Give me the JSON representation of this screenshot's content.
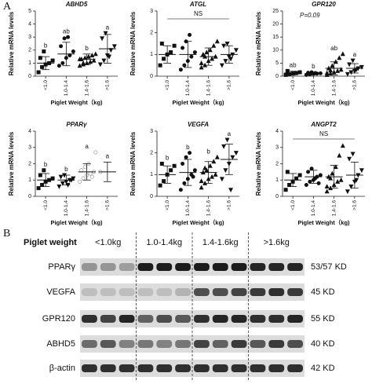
{
  "panel_labels": [
    "A",
    "B"
  ],
  "chart_data": [
    {
      "type": "scatter",
      "title": "ABHD5",
      "y_label": "Relative mRNA levels",
      "x_label": "Piglet Weight（kg)",
      "categories": [
        "<1.0",
        "1.0-1.4",
        "1.4-1.6",
        ">1.6"
      ],
      "markers": [
        "square",
        "circle",
        "triangle",
        "triangle-down"
      ],
      "ylim": [
        0,
        5
      ],
      "yticks": [
        0,
        1,
        2,
        3,
        4,
        5
      ],
      "points": [
        [
          0.3,
          0.7,
          0.9,
          1.0,
          1.2,
          1.4,
          1.9
        ],
        [
          0.8,
          1.0,
          1.4,
          1.6,
          1.9,
          2.3,
          2.9,
          3.0
        ],
        [
          0.8,
          0.9,
          1.0,
          1.1,
          1.2,
          1.3,
          1.4,
          1.5,
          1.6,
          1.7,
          1.3,
          1.0
        ],
        [
          0.9,
          1.2,
          1.6,
          2.0,
          2.3,
          2.9,
          3.3,
          1.5
        ]
      ],
      "means": [
        1.0,
        1.7,
        1.3,
        2.1
      ],
      "sd": [
        0.5,
        0.9,
        0.4,
        1.1
      ],
      "letters": [
        "b",
        "ab",
        "b",
        "a"
      ]
    },
    {
      "type": "scatter",
      "title": "ATGL",
      "y_label": "Relative mRNA levels",
      "x_label": "Piglet Weight（kg)",
      "categories": [
        "<1.0",
        "1.0-1.4",
        "1.4-1.6",
        ">1.6"
      ],
      "markers": [
        "square",
        "circle",
        "triangle",
        "triangle-down"
      ],
      "ylim": [
        0,
        3
      ],
      "yticks": [
        0,
        1,
        2,
        3
      ],
      "points": [
        [
          0.5,
          0.8,
          1.0,
          1.1,
          1.4,
          1.5
        ],
        [
          0.3,
          0.5,
          0.7,
          0.9,
          1.1,
          1.3,
          1.6,
          1.9
        ],
        [
          0.4,
          0.5,
          0.7,
          0.8,
          0.9,
          1.0,
          1.1,
          1.2,
          1.4,
          1.6,
          0.6,
          0.9
        ],
        [
          0.5,
          0.7,
          0.9,
          1.0,
          1.2,
          1.4,
          1.5,
          0.8
        ]
      ],
      "means": [
        1.0,
        1.0,
        0.9,
        1.0
      ],
      "sd": [
        0.4,
        0.6,
        0.4,
        0.4
      ],
      "annotation": "NS"
    },
    {
      "type": "scatter",
      "title": "GPR120",
      "y_label": "Relative mRNA levels",
      "x_label": "Piglet Weight（kg)",
      "categories": [
        "<1.0",
        "1.0-1.4",
        "1.4-1.6",
        ">1.6"
      ],
      "markers": [
        "square",
        "circle",
        "triangle",
        "triangle-down"
      ],
      "ylim": [
        0,
        25
      ],
      "yticks": [
        0,
        5,
        10,
        15,
        20,
        25
      ],
      "points": [
        [
          0.5,
          0.8,
          1.0,
          1.2,
          1.5,
          2.0
        ],
        [
          0.5,
          0.7,
          0.9,
          1.0,
          1.1,
          1.3,
          1.5,
          1.2
        ],
        [
          0.5,
          1.0,
          1.5,
          2.0,
          2.5,
          3.0,
          4.0,
          5.5,
          7.0,
          8.5,
          1.2,
          2.2
        ],
        [
          0.8,
          1.5,
          2.0,
          3.0,
          3.5,
          4.5,
          6.0,
          2.5
        ]
      ],
      "means": [
        1.2,
        1.0,
        3.0,
        3.0
      ],
      "sd": [
        0.7,
        0.5,
        2.5,
        1.8
      ],
      "letters": [
        "ab",
        "b",
        "ab",
        "a"
      ],
      "annotation": "P=0.09"
    },
    {
      "type": "scatter",
      "title": "PPARγ",
      "y_label": "Relative mRNA levels",
      "x_label": "Piglet Weight（kg)",
      "categories": [
        "<1.0",
        "1.0-1.4",
        "1.4-1.6",
        ">1.6"
      ],
      "markers": [
        "square",
        "triangle-down",
        "circle-open",
        "circle-open"
      ],
      "ylim": [
        0,
        4
      ],
      "yticks": [
        0,
        1,
        2,
        3,
        4
      ],
      "points": [
        [
          0.5,
          0.7,
          0.9,
          1.0,
          1.1,
          1.3,
          1.6
        ],
        [
          0.6,
          0.8,
          0.9,
          1.0,
          1.1,
          1.2,
          1.3,
          0.7,
          1.0
        ],
        [
          0.9,
          1.1,
          1.3,
          1.4,
          1.5,
          1.6,
          1.8,
          2.0,
          1.2,
          2.7
        ],
        [
          1.5
        ]
      ],
      "means": [
        1.0,
        1.0,
        1.5,
        1.5
      ],
      "sd": [
        0.4,
        0.3,
        0.5,
        0.6
      ],
      "letters": [
        "b",
        "b",
        "a",
        "a"
      ]
    },
    {
      "type": "scatter",
      "title": "VEGFA",
      "y_label": "Relative mRNA levels",
      "x_label": "Piglet Weight（kg)",
      "categories": [
        "<1.0",
        "1.0-1.4",
        "1.4-1.6",
        ">1.6"
      ],
      "markers": [
        "square",
        "circle",
        "triangle",
        "triangle-down"
      ],
      "ylim": [
        0,
        3
      ],
      "yticks": [
        0,
        1,
        2,
        3
      ],
      "points": [
        [
          0.5,
          0.7,
          1.0,
          1.2,
          1.4,
          1.5
        ],
        [
          0.3,
          0.6,
          0.8,
          1.0,
          1.2,
          1.5,
          1.8,
          2.0,
          0.9
        ],
        [
          0.4,
          0.6,
          0.8,
          0.9,
          1.0,
          1.1,
          1.2,
          1.4,
          1.6,
          1.8,
          0.7,
          1.3
        ],
        [
          0.8,
          1.2,
          1.5,
          1.8,
          2.0,
          2.3,
          2.6,
          0.3
        ]
      ],
      "means": [
        1.0,
        1.1,
        1.1,
        1.7
      ],
      "sd": [
        0.4,
        0.6,
        0.5,
        0.7
      ],
      "letters": [
        "b",
        "b",
        "b",
        "a"
      ]
    },
    {
      "type": "scatter",
      "title": "ANGPT2",
      "y_label": "Relative mRNA levels",
      "x_label": "Piglet Weight（kg)",
      "categories": [
        "<1.0",
        "1.0-1.4",
        "1.4-1.6",
        ">1.6"
      ],
      "markers": [
        "square",
        "circle",
        "triangle",
        "triangle-down"
      ],
      "ylim": [
        0,
        4
      ],
      "yticks": [
        0,
        1,
        2,
        3,
        4
      ],
      "points": [
        [
          0.4,
          0.7,
          0.9,
          1.1,
          1.3,
          1.5
        ],
        [
          0.7,
          0.9,
          1.0,
          1.2,
          1.3,
          1.5,
          1.7,
          1.1,
          0.8
        ],
        [
          0.3,
          0.5,
          0.7,
          0.9,
          1.0,
          1.2,
          1.4,
          1.8,
          2.5,
          3.1,
          0.6,
          1.1
        ],
        [
          0.3,
          0.6,
          0.9,
          1.3,
          1.6,
          2.3,
          2.6,
          1.0
        ]
      ],
      "means": [
        1.0,
        1.2,
        1.2,
        1.3
      ],
      "sd": [
        0.4,
        0.4,
        0.7,
        0.8
      ],
      "annotation": "NS"
    }
  ],
  "blot": {
    "header": "Piglet weight",
    "groups": [
      "<1.0kg",
      "1.0-1.4kg",
      "1.4-1.6kg",
      ">1.6kg"
    ],
    "rows": [
      {
        "protein": "PPARγ",
        "size": "53/57 KD"
      },
      {
        "protein": "VEGFA",
        "size": "45 KD"
      },
      {
        "protein": "GPR120",
        "size": "55 KD"
      },
      {
        "protein": "ABHD5",
        "size": "40 KD"
      },
      {
        "protein": "β-actin",
        "size": "42 KD"
      }
    ]
  }
}
